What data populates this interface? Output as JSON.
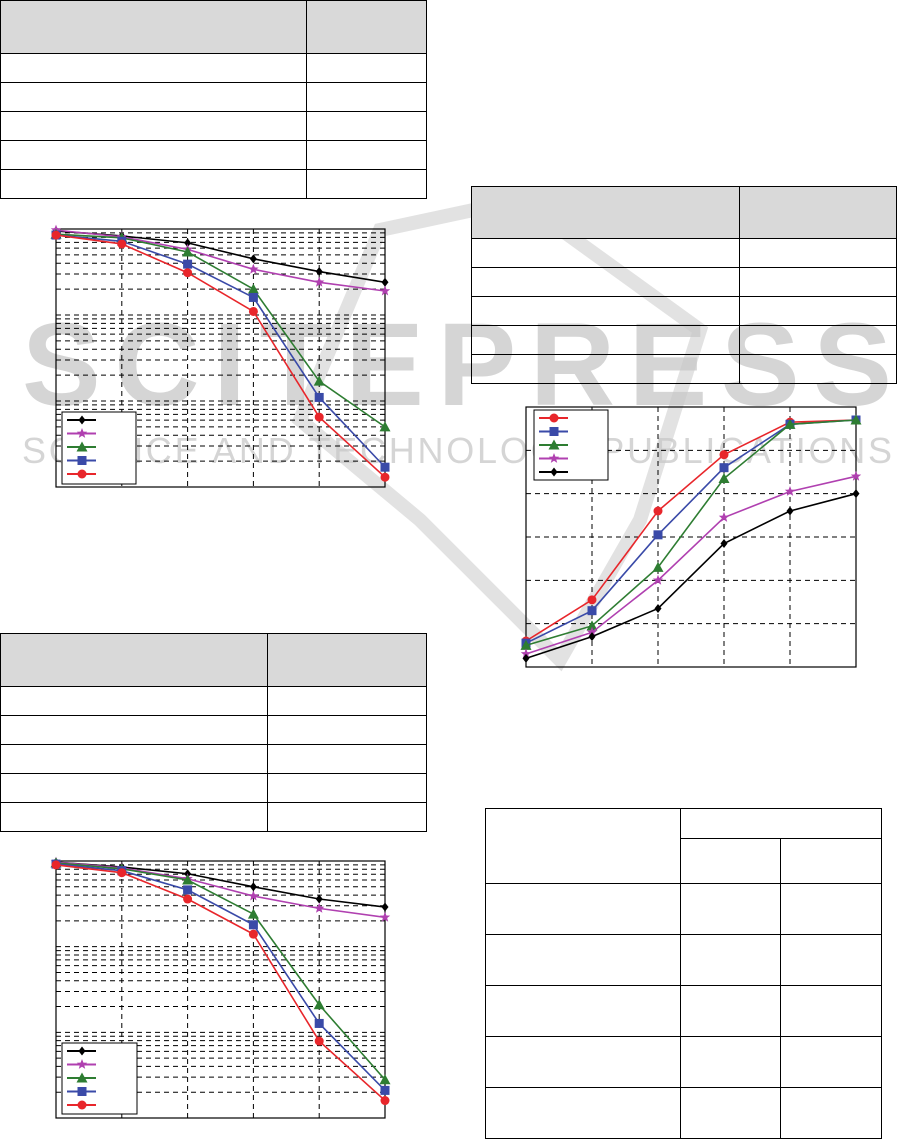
{
  "watermark": {
    "logo_text": "SCITEPRESS",
    "tagline": "SCIENCE AND TECHNOLOGY PUBLICATIONS",
    "color": "#c8c8c8"
  },
  "tables": [
    {
      "id": "t1",
      "header_rows": 1,
      "body_rows": 5,
      "columns": 2,
      "header_fill": "#d9d9d9"
    },
    {
      "id": "t2",
      "header_rows": 1,
      "body_rows": 5,
      "columns": 2,
      "header_fill": "#d9d9d9"
    },
    {
      "id": "t3",
      "header_rows": 1,
      "body_rows": 5,
      "columns": 2,
      "header_fill": "#d9d9d9"
    },
    {
      "id": "t4",
      "header_rows": 2,
      "body_rows": 5,
      "columns": 3,
      "header_fill": "#ffffff"
    }
  ],
  "chart_data": [
    {
      "type": "line",
      "yscale": "log",
      "ylim": [
        0.001,
        1
      ],
      "x": [
        1,
        2,
        3,
        4,
        5,
        6
      ],
      "grid": true,
      "legend": "bottom-left",
      "series": [
        {
          "color": "#000000",
          "marker": "diamond",
          "values": [
            0.95,
            0.83,
            0.69,
            0.45,
            0.32,
            0.24
          ]
        },
        {
          "color": "#b040b0",
          "marker": "star",
          "values": [
            0.97,
            0.81,
            0.58,
            0.34,
            0.24,
            0.19
          ]
        },
        {
          "color": "#2e7d32",
          "marker": "triangle",
          "values": [
            0.87,
            0.79,
            0.54,
            0.2,
            0.017,
            0.005
          ]
        },
        {
          "color": "#3a4aa8",
          "marker": "square",
          "values": [
            0.85,
            0.72,
            0.39,
            0.16,
            0.011,
            0.0017
          ]
        },
        {
          "color": "#e8262b",
          "marker": "circle",
          "values": [
            0.85,
            0.67,
            0.31,
            0.11,
            0.0065,
            0.0013
          ]
        }
      ]
    },
    {
      "type": "line",
      "yscale": "linear",
      "ylim": [
        0,
        1.2
      ],
      "x": [
        1,
        2,
        3,
        4,
        5,
        6
      ],
      "grid": true,
      "legend": "top-left",
      "series": [
        {
          "color": "#e8262b",
          "marker": "circle",
          "values": [
            0.12,
            0.31,
            0.72,
            0.98,
            1.13,
            1.14
          ]
        },
        {
          "color": "#3a4aa8",
          "marker": "square",
          "values": [
            0.11,
            0.26,
            0.61,
            0.92,
            1.12,
            1.14
          ]
        },
        {
          "color": "#2e7d32",
          "marker": "triangle",
          "values": [
            0.1,
            0.19,
            0.46,
            0.87,
            1.12,
            1.14
          ]
        },
        {
          "color": "#b040b0",
          "marker": "star",
          "values": [
            0.06,
            0.16,
            0.4,
            0.69,
            0.81,
            0.88
          ]
        },
        {
          "color": "#000000",
          "marker": "diamond",
          "values": [
            0.04,
            0.14,
            0.27,
            0.57,
            0.72,
            0.8
          ]
        }
      ]
    },
    {
      "type": "line",
      "yscale": "log",
      "ylim": [
        0.001,
        1
      ],
      "x": [
        1,
        2,
        3,
        4,
        5,
        6
      ],
      "grid": true,
      "legend": "bottom-left",
      "series": [
        {
          "color": "#000000",
          "marker": "diamond",
          "values": [
            0.97,
            0.85,
            0.71,
            0.5,
            0.36,
            0.29
          ]
        },
        {
          "color": "#b040b0",
          "marker": "star",
          "values": [
            0.97,
            0.83,
            0.62,
            0.39,
            0.28,
            0.22
          ]
        },
        {
          "color": "#2e7d32",
          "marker": "triangle",
          "values": [
            0.95,
            0.81,
            0.6,
            0.24,
            0.021,
            0.0028
          ]
        },
        {
          "color": "#3a4aa8",
          "marker": "square",
          "values": [
            0.92,
            0.77,
            0.46,
            0.18,
            0.0127,
            0.0021
          ]
        },
        {
          "color": "#e8262b",
          "marker": "circle",
          "values": [
            0.9,
            0.73,
            0.36,
            0.14,
            0.0079,
            0.0016
          ]
        }
      ]
    }
  ]
}
